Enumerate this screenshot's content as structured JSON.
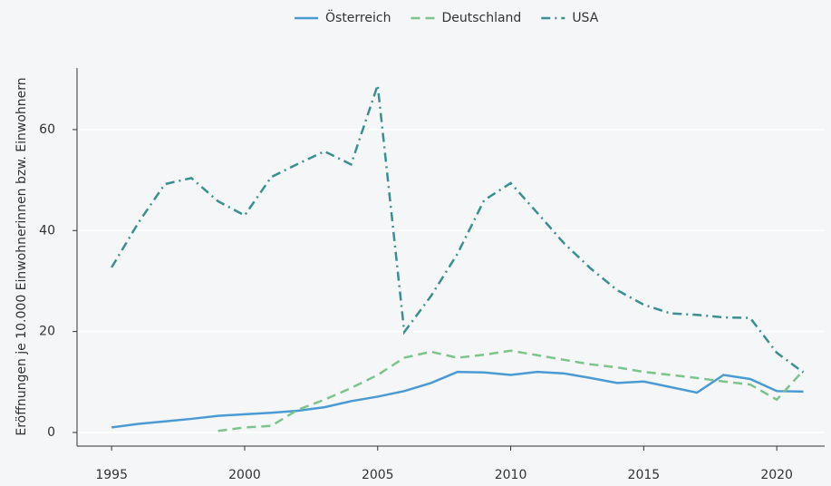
{
  "chart_data": {
    "type": "line",
    "ylabel": "Eröffnungen je 10.000 Einwohnerinnen bzw. Einwohnern",
    "x": [
      1995,
      1996,
      1997,
      1998,
      1999,
      2000,
      2001,
      2002,
      2003,
      2004,
      2005,
      2006,
      2007,
      2008,
      2009,
      2010,
      2011,
      2012,
      2013,
      2014,
      2015,
      2016,
      2017,
      2018,
      2019,
      2020,
      2021
    ],
    "series": [
      {
        "name": "Österreich",
        "color": "#4a9bd4",
        "dash": "solid",
        "values": [
          1.0,
          1.7,
          2.2,
          2.7,
          3.3,
          3.6,
          3.9,
          4.3,
          5.0,
          6.2,
          7.1,
          8.2,
          9.8,
          12.0,
          11.9,
          11.4,
          12.0,
          11.7,
          10.8,
          9.8,
          10.1,
          9.0,
          7.9,
          11.4,
          10.6,
          8.2,
          8.1
        ]
      },
      {
        "name": "Deutschland",
        "color": "#7cc48a",
        "dash": "dashed",
        "values": [
          null,
          null,
          null,
          null,
          0.3,
          1.0,
          1.3,
          4.5,
          6.5,
          8.8,
          11.4,
          14.8,
          16.0,
          14.8,
          15.4,
          16.2,
          15.3,
          14.4,
          13.5,
          12.9,
          12.0,
          11.4,
          10.8,
          10.1,
          9.5,
          6.5,
          12.3
        ]
      },
      {
        "name": "USA",
        "color": "#3a8f94",
        "dash": "dashdot",
        "values": [
          32.7,
          41.5,
          49.2,
          50.4,
          45.8,
          43.0,
          50.6,
          53.2,
          55.7,
          53.1,
          68.8,
          19.9,
          27.0,
          35.4,
          46.0,
          49.4,
          43.5,
          37.5,
          32.5,
          28.2,
          25.3,
          23.6,
          23.3,
          22.8,
          22.7,
          15.8,
          11.9
        ]
      }
    ],
    "xlim": [
      1993.7,
      2021.8
    ],
    "xticks": [
      1995,
      2000,
      2005,
      2010,
      2015,
      2020
    ],
    "ylim": [
      -2.7,
      72.2
    ],
    "yticks": [
      0,
      20,
      40,
      60
    ],
    "grid": true,
    "legend": "top"
  }
}
